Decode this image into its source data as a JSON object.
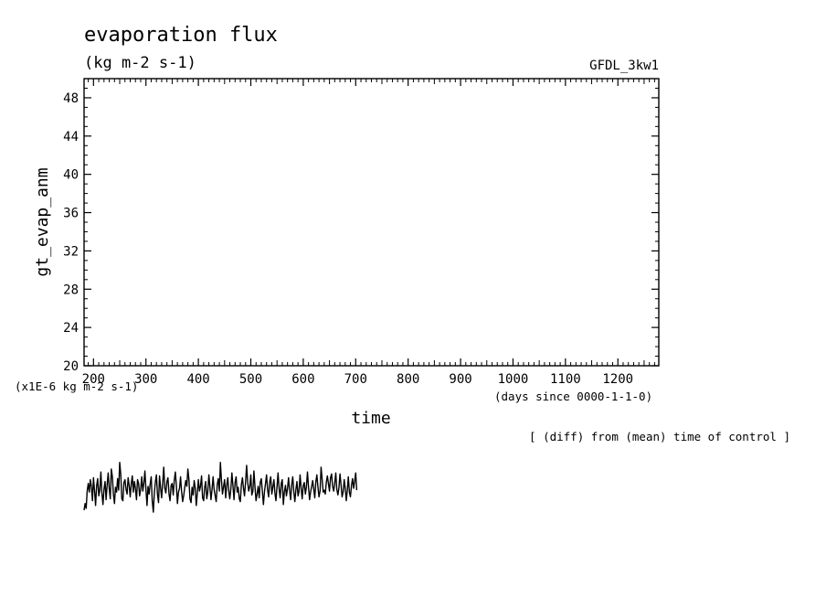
{
  "chart_data": {
    "type": "line",
    "title": "evaporation flux",
    "subtitle": "(kg m-2 s-1)",
    "model_label": "GFDL_3kw1",
    "xlabel": "time",
    "x_units": "(days since 0000-1-1-0)",
    "ylabel": "gt_evap_anm",
    "y_units": "(x1E-6 kg m-2 s-1)",
    "note": "[ (diff) from (mean) time of control ]",
    "xlim": [
      182,
      1278
    ],
    "ylim": [
      20,
      50
    ],
    "x_ticks": [
      "200",
      "300",
      "400",
      "500",
      "600",
      "700",
      "800",
      "900",
      "1000",
      "1100",
      "1200"
    ],
    "y_ticks": [
      "20",
      "24",
      "28",
      "32",
      "36",
      "40",
      "44",
      "48"
    ],
    "grid": false,
    "series": [
      {
        "color": "#000000",
        "x_start": 182,
        "x_step": 2,
        "values": [
          4.9,
          5.6,
          5.1,
          6.9,
          7.7,
          6.8,
          8.1,
          7.4,
          5.9,
          8.3,
          6.9,
          5.4,
          7.5,
          8.2,
          6.4,
          7.0,
          8.9,
          6.7,
          5.5,
          7.1,
          7.9,
          6.0,
          7.6,
          8.8,
          7.2,
          6.1,
          9.2,
          8.4,
          6.6,
          5.6,
          7.3,
          6.8,
          8.2,
          7.0,
          9.9,
          8.6,
          6.1,
          5.9,
          7.8,
          8.1,
          7.1,
          6.6,
          8.3,
          7.5,
          6.3,
          7.7,
          8.5,
          6.8,
          7.9,
          7.2,
          6.0,
          8.1,
          7.7,
          6.4,
          7.1,
          8.4,
          6.9,
          7.7,
          9.0,
          7.1,
          5.4,
          7.4,
          6.6,
          7.6,
          8.4,
          5.9,
          4.7,
          6.7,
          7.9,
          8.6,
          6.6,
          5.7,
          8.5,
          7.2,
          6.2,
          7.8,
          9.4,
          7.2,
          6.7,
          7.9,
          8.3,
          6.6,
          5.9,
          7.5,
          7.7,
          6.5,
          8.0,
          8.9,
          7.5,
          5.6,
          6.8,
          7.2,
          8.4,
          6.9,
          5.8,
          6.4,
          7.3,
          8.0,
          7.4,
          9.2,
          8.1,
          6.1,
          5.7,
          7.3,
          6.5,
          8.0,
          7.2,
          5.4,
          6.7,
          8.1,
          6.9,
          7.4,
          8.5,
          6.2,
          5.9,
          7.3,
          7.9,
          6.1,
          6.8,
          8.6,
          7.4,
          6.0,
          7.0,
          8.4,
          7.1,
          6.4,
          5.8,
          7.6,
          8.2,
          6.9,
          9.9,
          8.0,
          6.6,
          7.4,
          8.1,
          6.2,
          7.5,
          8.3,
          6.9,
          6.1,
          7.2,
          8.8,
          7.4,
          6.0,
          7.8,
          8.4,
          6.8,
          7.3,
          6.1,
          5.8,
          7.6,
          8.3,
          7.2,
          6.4,
          7.9,
          9.6,
          7.8,
          6.9,
          7.4,
          8.6,
          6.5,
          6.9,
          9.0,
          7.3,
          5.9,
          6.6,
          7.4,
          6.2,
          7.8,
          8.2,
          6.9,
          5.5,
          6.8,
          7.7,
          8.6,
          7.0,
          6.3,
          7.9,
          8.4,
          6.6,
          7.3,
          8.1,
          6.7,
          5.9,
          7.4,
          8.8,
          7.1,
          6.2,
          7.7,
          8.1,
          5.5,
          6.8,
          7.5,
          6.4,
          7.2,
          8.3,
          6.9,
          6.0,
          7.6,
          8.4,
          6.8,
          5.8,
          7.1,
          7.9,
          6.4,
          6.9,
          8.6,
          7.2,
          6.1,
          7.5,
          7.8,
          6.6,
          7.3,
          8.9,
          7.4,
          6.0,
          6.8,
          7.4,
          8.0,
          7.1,
          6.2,
          7.9,
          8.6,
          7.3,
          6.3,
          6.9,
          9.4,
          8.1,
          6.8,
          7.0,
          6.6,
          7.8,
          8.5,
          7.7,
          6.9,
          8.3,
          8.7,
          7.4,
          6.9,
          7.7,
          8.8,
          7.1,
          6.5,
          7.2,
          8.7,
          7.6,
          6.3,
          6.8,
          8.1,
          7.2,
          5.9,
          7.0,
          8.4,
          6.8,
          6.3,
          7.5,
          8.2,
          7.2,
          7.9,
          8.8,
          7.0
        ]
      }
    ]
  }
}
